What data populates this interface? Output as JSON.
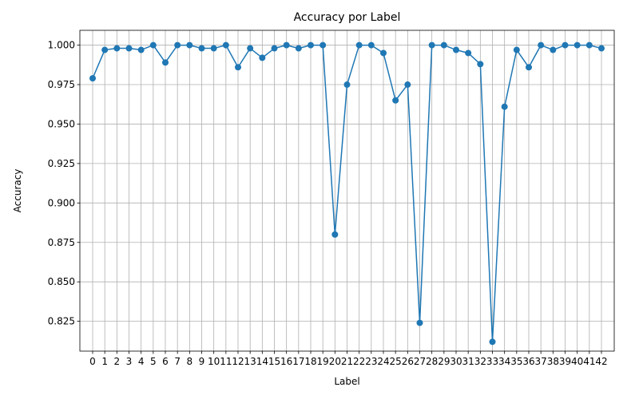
{
  "chart_data": {
    "type": "line",
    "title": "Accuracy por Label",
    "xlabel": "Label",
    "ylabel": "Accuracy",
    "grid": true,
    "marker": "circle",
    "color": "#1f77b4",
    "x": [
      0,
      1,
      2,
      3,
      4,
      5,
      6,
      7,
      8,
      9,
      10,
      11,
      12,
      13,
      14,
      15,
      16,
      17,
      18,
      19,
      20,
      21,
      22,
      23,
      24,
      25,
      26,
      27,
      28,
      29,
      30,
      31,
      32,
      33,
      34,
      35,
      36,
      37,
      38,
      39,
      40,
      41,
      42
    ],
    "x_tick_labels": [
      "0",
      "1",
      "2",
      "3",
      "4",
      "5",
      "6",
      "7",
      "8",
      "9",
      "10",
      "11",
      "12",
      "13",
      "14",
      "15",
      "16",
      "17",
      "18",
      "19",
      "20",
      "21",
      "22",
      "23",
      "24",
      "25",
      "26",
      "27",
      "28",
      "29",
      "30",
      "31",
      "32",
      "33",
      "34",
      "35",
      "36",
      "37",
      "38",
      "39",
      "40",
      "41",
      "42"
    ],
    "values": [
      0.979,
      0.997,
      0.998,
      0.998,
      0.997,
      1.0,
      0.989,
      1.0,
      1.0,
      0.998,
      0.998,
      1.0,
      0.986,
      0.998,
      0.992,
      0.998,
      1.0,
      0.998,
      1.0,
      1.0,
      0.88,
      0.975,
      1.0,
      1.0,
      0.995,
      0.965,
      0.975,
      0.824,
      1.0,
      1.0,
      0.997,
      0.995,
      0.988,
      0.812,
      0.961,
      0.997,
      0.986,
      1.0,
      0.997,
      1.0,
      1.0,
      1.0,
      0.998
    ],
    "y_ticks": [
      0.825,
      0.85,
      0.875,
      0.9,
      0.925,
      0.95,
      0.975,
      1.0
    ],
    "y_tick_labels": [
      "0.825",
      "0.850",
      "0.875",
      "0.900",
      "0.925",
      "0.950",
      "0.975",
      "1.000"
    ],
    "ylim": [
      0.8061,
      1.0094
    ]
  }
}
